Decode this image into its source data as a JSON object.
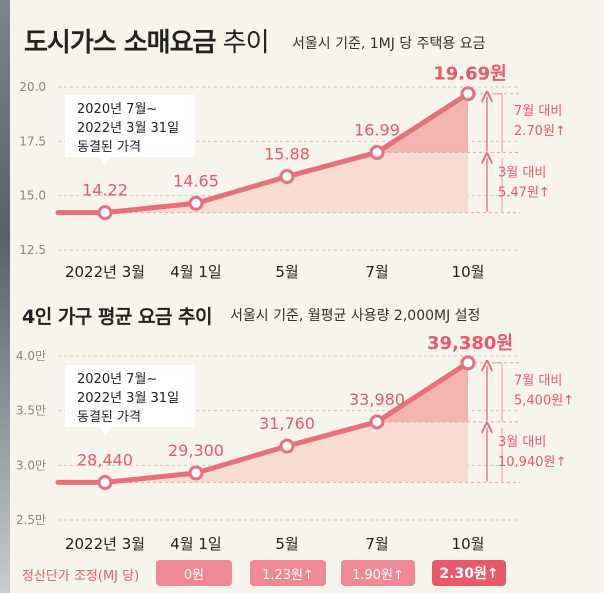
{
  "header": {
    "title_bold": "도시가스 소매요금",
    "title_light": " 추이",
    "subtitle": "서울시 기준, 1MJ 당 주택용 요금"
  },
  "header2": {
    "title": "4인 가구 평균 요금 추이",
    "subtitle": "서울시 기준, 월평균 사용량 2,000MJ 설정"
  },
  "colors": {
    "line": "#e8707d",
    "area": "#f8dcd2",
    "area_dark": "#f3a7a3",
    "accent": "#e85a6b",
    "grid": "#cfcac0"
  },
  "chart_data": [
    {
      "type": "line",
      "categories": [
        "2022년 3월",
        "4월 1일",
        "5월",
        "7월",
        "10월"
      ],
      "values": [
        14.22,
        14.65,
        15.88,
        16.99,
        19.69
      ],
      "value_labels": [
        "14.22",
        "14.65",
        "15.88",
        "16.99",
        "19.69원"
      ],
      "ytick_labels": [
        "12.5",
        "15.0",
        "17.5",
        "20.0"
      ],
      "ylim": [
        12.5,
        20.0
      ],
      "yticks": [
        12.5,
        15.0,
        17.5,
        20.0
      ],
      "grid": true,
      "annotation": [
        "2020년 7월~",
        "2022년 3월 31일",
        "동결된 가격"
      ],
      "diffs": [
        {
          "lines": [
            "7월 대비",
            "2.70원↑"
          ],
          "from": 16.99,
          "to": 19.69
        },
        {
          "lines": [
            "3월 대비",
            "5.47원↑"
          ],
          "from": 14.22,
          "to": 19.69
        }
      ]
    },
    {
      "type": "line",
      "categories": [
        "2022년 3월",
        "4월 1일",
        "5월",
        "7월",
        "10월"
      ],
      "values": [
        28440,
        29300,
        31760,
        33980,
        39380
      ],
      "value_labels": [
        "28,440",
        "29,300",
        "31,760",
        "33,980",
        "39,380원"
      ],
      "ytick_labels": [
        "2.5만",
        "3.0만",
        "3.5만",
        "4.0만"
      ],
      "ylim": [
        25000,
        40000
      ],
      "yticks": [
        25000,
        30000,
        35000,
        40000
      ],
      "grid": true,
      "annotation": [
        "2020년 7월~",
        "2022년 3월 31일",
        "동결된 가격"
      ],
      "diffs": [
        {
          "lines": [
            "7월 대비",
            "5,400원↑"
          ],
          "from": 33980,
          "to": 39380
        },
        {
          "lines": [
            "3월 대비",
            "10,940원↑"
          ],
          "from": 28440,
          "to": 39380
        }
      ]
    }
  ],
  "adjustment": {
    "label": "정산단가 조정(MJ 당)",
    "values": [
      "0원",
      "1.23원↑",
      "1.90원↑",
      "2.30원↑"
    ]
  }
}
